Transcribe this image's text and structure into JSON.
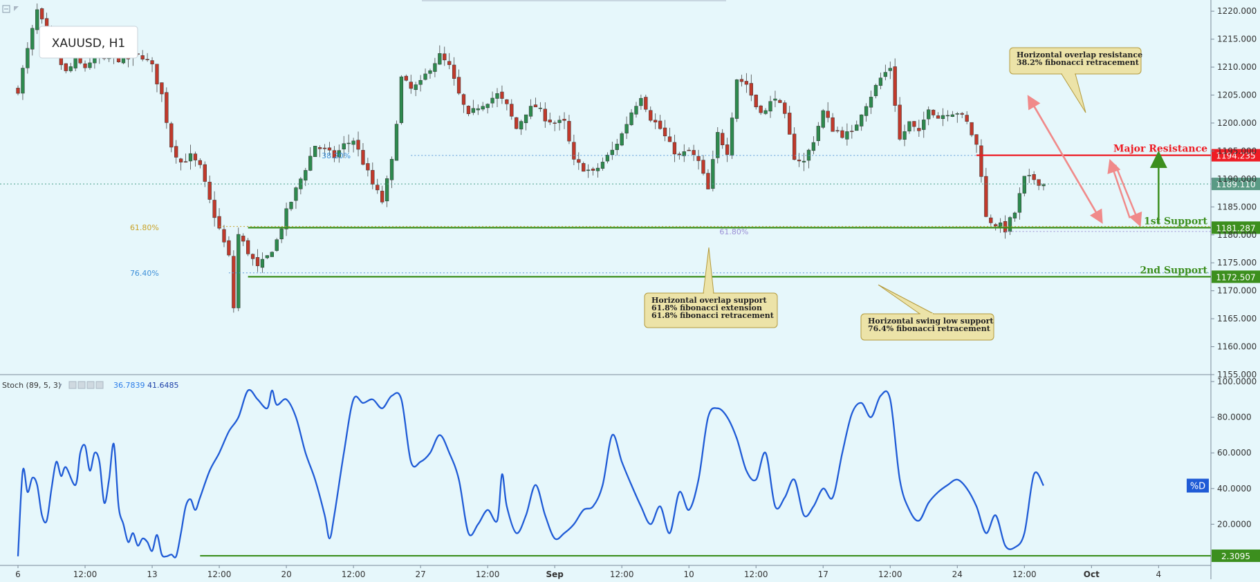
{
  "chart_data": {
    "type": "candlestick",
    "symbol": "XAUUSD, H1",
    "price_axis": {
      "min": 1155,
      "max": 1222,
      "ticks": [
        "1220.000",
        "1215.000",
        "1210.000",
        "1205.000",
        "1200.000",
        "1195.000",
        "1190.000",
        "1185.000",
        "1180.000",
        "1175.000",
        "1170.000",
        "1165.000",
        "1160.000",
        "1155.000"
      ]
    },
    "time_axis": {
      "ticks": [
        {
          "label": "6",
          "bar": 0
        },
        {
          "label": "12:00",
          "bar": 14
        },
        {
          "label": "13",
          "bar": 28
        },
        {
          "label": "12:00",
          "bar": 42
        },
        {
          "label": "20",
          "bar": 56
        },
        {
          "label": "12:00",
          "bar": 70
        },
        {
          "label": "27",
          "bar": 84
        },
        {
          "label": "12:00",
          "bar": 98
        },
        {
          "label": "Sep",
          "bar": 112
        },
        {
          "label": "12:00",
          "bar": 126
        },
        {
          "label": "10",
          "bar": 140
        },
        {
          "label": "12:00",
          "bar": 154
        },
        {
          "label": "17",
          "bar": 168
        },
        {
          "label": "12:00",
          "bar": 182
        },
        {
          "label": "24",
          "bar": 196
        },
        {
          "label": "12:00",
          "bar": 210
        },
        {
          "label": "Oct",
          "bar": 224
        },
        {
          "label": "4",
          "bar": 238
        }
      ]
    },
    "close_path": [
      [
        0,
        1206
      ],
      [
        2,
        1213
      ],
      [
        4,
        1220
      ],
      [
        6,
        1216
      ],
      [
        8,
        1212
      ],
      [
        10,
        1209
      ],
      [
        12,
        1211
      ],
      [
        14,
        1210
      ],
      [
        16,
        1212
      ],
      [
        18,
        1211
      ],
      [
        20,
        1212
      ],
      [
        22,
        1211
      ],
      [
        24,
        1212
      ],
      [
        26,
        1212
      ],
      [
        28,
        1210
      ],
      [
        30,
        1205
      ],
      [
        32,
        1196
      ],
      [
        34,
        1193
      ],
      [
        36,
        1194
      ],
      [
        38,
        1192
      ],
      [
        40,
        1186
      ],
      [
        42,
        1181
      ],
      [
        44,
        1176
      ],
      [
        45,
        1167
      ],
      [
        46,
        1180
      ],
      [
        48,
        1177
      ],
      [
        50,
        1174
      ],
      [
        52,
        1176
      ],
      [
        54,
        1179
      ],
      [
        56,
        1184
      ],
      [
        58,
        1188
      ],
      [
        60,
        1192
      ],
      [
        62,
        1196
      ],
      [
        64,
        1195
      ],
      [
        66,
        1194
      ],
      [
        68,
        1196
      ],
      [
        70,
        1197
      ],
      [
        72,
        1193
      ],
      [
        74,
        1189
      ],
      [
        76,
        1186
      ],
      [
        78,
        1193
      ],
      [
        80,
        1208
      ],
      [
        82,
        1206
      ],
      [
        84,
        1207
      ],
      [
        86,
        1210
      ],
      [
        88,
        1212
      ],
      [
        90,
        1210
      ],
      [
        92,
        1205
      ],
      [
        94,
        1201
      ],
      [
        96,
        1203
      ],
      [
        98,
        1204
      ],
      [
        100,
        1205
      ],
      [
        102,
        1203
      ],
      [
        104,
        1199
      ],
      [
        106,
        1202
      ],
      [
        108,
        1203
      ],
      [
        110,
        1201
      ],
      [
        112,
        1200
      ],
      [
        114,
        1200
      ],
      [
        116,
        1193
      ],
      [
        118,
        1192
      ],
      [
        120,
        1191
      ],
      [
        122,
        1193
      ],
      [
        124,
        1195
      ],
      [
        126,
        1198
      ],
      [
        128,
        1202
      ],
      [
        130,
        1205
      ],
      [
        132,
        1201
      ],
      [
        134,
        1199
      ],
      [
        136,
        1196
      ],
      [
        138,
        1194
      ],
      [
        140,
        1195
      ],
      [
        142,
        1193
      ],
      [
        144,
        1188
      ],
      [
        146,
        1198
      ],
      [
        148,
        1195
      ],
      [
        150,
        1208
      ],
      [
        152,
        1207
      ],
      [
        154,
        1203
      ],
      [
        156,
        1202
      ],
      [
        158,
        1205
      ],
      [
        160,
        1201
      ],
      [
        162,
        1194
      ],
      [
        164,
        1193
      ],
      [
        166,
        1197
      ],
      [
        168,
        1202
      ],
      [
        170,
        1199
      ],
      [
        172,
        1198
      ],
      [
        174,
        1198
      ],
      [
        176,
        1202
      ],
      [
        178,
        1205
      ],
      [
        180,
        1208
      ],
      [
        182,
        1210
      ],
      [
        184,
        1197
      ],
      [
        186,
        1200
      ],
      [
        188,
        1198
      ],
      [
        190,
        1203
      ],
      [
        192,
        1201
      ],
      [
        194,
        1202
      ],
      [
        196,
        1202
      ],
      [
        198,
        1200
      ],
      [
        200,
        1196
      ],
      [
        201,
        1191
      ],
      [
        202,
        1183
      ],
      [
        204,
        1182
      ],
      [
        206,
        1181
      ],
      [
        208,
        1184
      ],
      [
        210,
        1190
      ],
      [
        212,
        1190
      ],
      [
        214,
        1189
      ]
    ],
    "last_bar": 214,
    "levels": [
      {
        "name": "Major Resistance",
        "label": "Major Resistance",
        "price": 1194.235,
        "price_label": "1194.235",
        "color": "#ee1c24"
      },
      {
        "name": "1st Support",
        "label": "1st Support",
        "price": 1181.287,
        "price_label": "1181.287",
        "color": "#3c8f1e"
      },
      {
        "name": "2nd Support",
        "label": "2nd Support",
        "price": 1172.507,
        "price_label": "1172.507",
        "color": "#3c8f1e"
      }
    ],
    "current_price": {
      "price": 1189.11,
      "label": "1189.110"
    },
    "fib_labels": [
      {
        "text": "38.20%",
        "bar": 70,
        "price": 1194.2,
        "color": "#3d8fd8"
      },
      {
        "text": "61.80%",
        "bar": 30,
        "price": 1181.3,
        "color": "#c9a227"
      },
      {
        "text": "76.40%",
        "bar": 30,
        "price": 1173.2,
        "color": "#3d8fd8"
      },
      {
        "text": "61.80%",
        "bar": 153,
        "price": 1180.6,
        "color": "#9a8fd6"
      }
    ],
    "callouts": [
      {
        "lines": [
          "Horizontal overlap resistance",
          "38.2% fibonacci retracement"
        ]
      },
      {
        "lines": [
          "Horizontal overlap support",
          "61.8% fibonacci extension",
          "61.8% fibonacci retracement"
        ]
      },
      {
        "lines": [
          "Horizontal swing low support",
          "76.4% fibonacci retracement"
        ]
      }
    ],
    "stochastic": {
      "title": "Stoch (89, 5, 3)",
      "k_value": "36.7839",
      "d_value": "41.6485",
      "series_label": "%D",
      "ylim": [
        0,
        100
      ],
      "ticks": [
        "100.0000",
        "80.0000",
        "60.0000",
        "40.0000",
        "20.0000"
      ],
      "level_value": "2.3095",
      "level": 2.3095,
      "path": [
        [
          0,
          2
        ],
        [
          1,
          50
        ],
        [
          2,
          38
        ],
        [
          3,
          46
        ],
        [
          4,
          42
        ],
        [
          5,
          25
        ],
        [
          6,
          22
        ],
        [
          7,
          40
        ],
        [
          8,
          55
        ],
        [
          9,
          47
        ],
        [
          10,
          52
        ],
        [
          12,
          42
        ],
        [
          13,
          60
        ],
        [
          14,
          64
        ],
        [
          15,
          50
        ],
        [
          16,
          60
        ],
        [
          17,
          55
        ],
        [
          18,
          32
        ],
        [
          19,
          45
        ],
        [
          20,
          65
        ],
        [
          21,
          30
        ],
        [
          22,
          20
        ],
        [
          23,
          10
        ],
        [
          24,
          15
        ],
        [
          25,
          8
        ],
        [
          26,
          12
        ],
        [
          27,
          10
        ],
        [
          28,
          5
        ],
        [
          29,
          14
        ],
        [
          30,
          3
        ],
        [
          31,
          2
        ],
        [
          32,
          3
        ],
        [
          33,
          2
        ],
        [
          34,
          15
        ],
        [
          35,
          30
        ],
        [
          36,
          34
        ],
        [
          37,
          28
        ],
        [
          38,
          35
        ],
        [
          40,
          50
        ],
        [
          42,
          60
        ],
        [
          44,
          72
        ],
        [
          46,
          80
        ],
        [
          48,
          95
        ],
        [
          50,
          90
        ],
        [
          52,
          85
        ],
        [
          53,
          95
        ],
        [
          54,
          87
        ],
        [
          56,
          90
        ],
        [
          58,
          80
        ],
        [
          60,
          60
        ],
        [
          62,
          45
        ],
        [
          64,
          25
        ],
        [
          65,
          12
        ],
        [
          66,
          25
        ],
        [
          68,
          60
        ],
        [
          70,
          90
        ],
        [
          72,
          88
        ],
        [
          74,
          90
        ],
        [
          76,
          85
        ],
        [
          78,
          92
        ],
        [
          80,
          90
        ],
        [
          82,
          55
        ],
        [
          84,
          55
        ],
        [
          86,
          60
        ],
        [
          88,
          70
        ],
        [
          90,
          60
        ],
        [
          92,
          45
        ],
        [
          94,
          15
        ],
        [
          96,
          20
        ],
        [
          98,
          28
        ],
        [
          100,
          22
        ],
        [
          101,
          48
        ],
        [
          102,
          30
        ],
        [
          104,
          15
        ],
        [
          106,
          25
        ],
        [
          108,
          42
        ],
        [
          110,
          25
        ],
        [
          112,
          12
        ],
        [
          114,
          15
        ],
        [
          116,
          20
        ],
        [
          118,
          28
        ],
        [
          120,
          30
        ],
        [
          122,
          42
        ],
        [
          124,
          70
        ],
        [
          126,
          55
        ],
        [
          128,
          42
        ],
        [
          130,
          30
        ],
        [
          132,
          20
        ],
        [
          134,
          30
        ],
        [
          136,
          15
        ],
        [
          138,
          38
        ],
        [
          140,
          28
        ],
        [
          142,
          45
        ],
        [
          144,
          80
        ],
        [
          146,
          85
        ],
        [
          148,
          80
        ],
        [
          150,
          68
        ],
        [
          152,
          50
        ],
        [
          154,
          45
        ],
        [
          156,
          60
        ],
        [
          158,
          30
        ],
        [
          160,
          35
        ],
        [
          162,
          45
        ],
        [
          164,
          25
        ],
        [
          166,
          30
        ],
        [
          168,
          40
        ],
        [
          170,
          35
        ],
        [
          172,
          60
        ],
        [
          174,
          82
        ],
        [
          176,
          88
        ],
        [
          178,
          80
        ],
        [
          180,
          92
        ],
        [
          182,
          90
        ],
        [
          184,
          45
        ],
        [
          186,
          28
        ],
        [
          188,
          22
        ],
        [
          190,
          32
        ],
        [
          192,
          38
        ],
        [
          194,
          42
        ],
        [
          196,
          45
        ],
        [
          198,
          40
        ],
        [
          200,
          30
        ],
        [
          202,
          15
        ],
        [
          204,
          25
        ],
        [
          206,
          8
        ],
        [
          208,
          7
        ],
        [
          210,
          15
        ],
        [
          212,
          48
        ],
        [
          214,
          41.6485
        ]
      ]
    }
  }
}
